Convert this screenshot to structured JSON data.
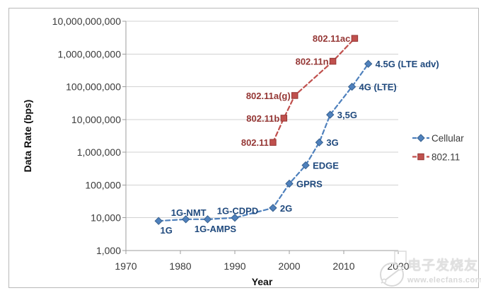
{
  "chart_data": {
    "type": "line",
    "title": "",
    "xlabel": "Year",
    "ylabel": "Data Rate (bps)",
    "grid": true,
    "x_axis": {
      "min": 1970,
      "max": 2020,
      "ticks": [
        1970,
        1980,
        1990,
        2000,
        2010,
        2020
      ]
    },
    "y_axis": {
      "scale": "log",
      "min": 1000,
      "max": 10000000000,
      "ticks": [
        1000,
        10000,
        100000,
        1000000,
        10000000,
        100000000,
        1000000000,
        10000000000
      ]
    },
    "legend": {
      "position": "middle-right",
      "entries": [
        "Cellular",
        "802.11"
      ]
    },
    "series": [
      {
        "name": "Cellular",
        "marker": "diamond",
        "line_style": "dashed",
        "color": "#4F81BD",
        "marker_edge": "#38618F",
        "label_color": "#1F497D",
        "points": [
          {
            "x": 1976,
            "y": 8000,
            "label": "1G",
            "label_pos": "below"
          },
          {
            "x": 1981,
            "y": 9000,
            "label": "1G-NMT",
            "label_pos": "above"
          },
          {
            "x": 1985,
            "y": 9000,
            "label": "1G-AMPS",
            "label_pos": "below"
          },
          {
            "x": 1990,
            "y": 10000,
            "label": "1G-CDPD",
            "label_pos": "above"
          },
          {
            "x": 1997,
            "y": 20000,
            "label": "2G",
            "label_pos": "right"
          },
          {
            "x": 2000,
            "y": 110000,
            "label": "GPRS",
            "label_pos": "right"
          },
          {
            "x": 2003,
            "y": 400000,
            "label": "EDGE",
            "label_pos": "right"
          },
          {
            "x": 2005.5,
            "y": 2000000,
            "label": "3G",
            "label_pos": "right"
          },
          {
            "x": 2007.5,
            "y": 14000000,
            "label": "3,5G",
            "label_pos": "right"
          },
          {
            "x": 2011.5,
            "y": 100000000,
            "label": "4G (LTE)",
            "label_pos": "right"
          },
          {
            "x": 2014.5,
            "y": 500000000,
            "label": "4.5G (LTE adv)",
            "label_pos": "right"
          }
        ]
      },
      {
        "name": "802.11",
        "marker": "square",
        "line_style": "dashed",
        "color": "#C0504D",
        "marker_edge": "#943634",
        "label_color": "#953735",
        "points": [
          {
            "x": 1997,
            "y": 2000000,
            "label": "802.11",
            "label_pos": "left"
          },
          {
            "x": 1999,
            "y": 11000000,
            "label": "802.11b",
            "label_pos": "left"
          },
          {
            "x": 2001,
            "y": 54000000,
            "label": "802.11a(g)",
            "label_pos": "left"
          },
          {
            "x": 2008,
            "y": 600000000,
            "label": "802.11n",
            "label_pos": "left"
          },
          {
            "x": 2012,
            "y": 3000000000,
            "label": "802.11ac",
            "label_pos": "left"
          }
        ]
      }
    ]
  },
  "watermark": {
    "brand": "电子发烧友",
    "url": "www.elecfans.com"
  }
}
